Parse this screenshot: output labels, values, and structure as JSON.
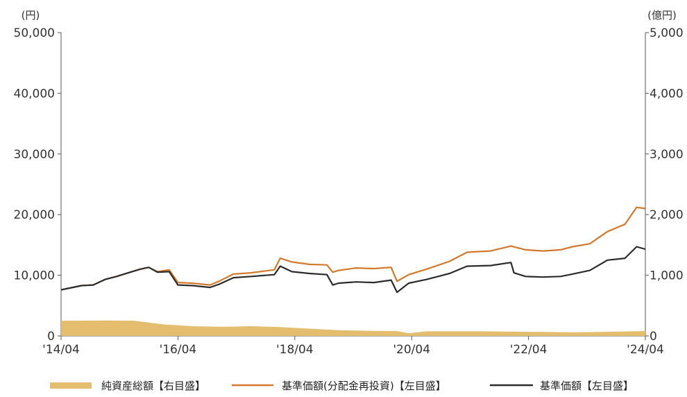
{
  "chart_data": {
    "type": "line",
    "left_unit": "(円)",
    "right_unit": "(億円)",
    "ylim_left": [
      0,
      50000
    ],
    "ylim_right": [
      0,
      5000
    ],
    "left_ticks": [
      "0",
      "10,000",
      "20,000",
      "30,000",
      "40,000",
      "50,000"
    ],
    "right_ticks": [
      "0",
      "1,000",
      "2,000",
      "3,000",
      "4,000",
      "5,000"
    ],
    "x_ticks": [
      "'14/04",
      "'16/04",
      "'18/04",
      "'20/04",
      "'22/04",
      "'24/04"
    ],
    "grid": false,
    "legend_position": "bottom",
    "series": [
      {
        "name": "純資産総額【右目盛】",
        "type": "area",
        "axis": "right",
        "color": "#E4BE6E",
        "x": [
          2014.25,
          2015.0,
          2015.5,
          2016.0,
          2016.5,
          2017.0,
          2017.5,
          2018.0,
          2018.5,
          2019.0,
          2019.5,
          2020.0,
          2020.2,
          2020.5,
          2021.0,
          2021.5,
          2022.0,
          2022.5,
          2023.0,
          2023.5,
          2024.0,
          2024.25
        ],
        "values": [
          250,
          255,
          250,
          190,
          160,
          150,
          160,
          145,
          120,
          95,
          85,
          80,
          45,
          75,
          75,
          75,
          70,
          65,
          60,
          65,
          75,
          80
        ]
      },
      {
        "name": "基準価額(分配金再投資)【左目盛】",
        "type": "line",
        "axis": "left",
        "color": "#D4782A",
        "x": [
          2014.25,
          2014.4,
          2014.6,
          2014.8,
          2015.0,
          2015.2,
          2015.4,
          2015.6,
          2015.75,
          2015.9,
          2016.1,
          2016.25,
          2016.5,
          2016.8,
          2016.95,
          2017.2,
          2017.5,
          2017.9,
          2018.0,
          2018.2,
          2018.5,
          2018.8,
          2018.9,
          2019.0,
          2019.3,
          2019.6,
          2019.9,
          2020.0,
          2020.2,
          2020.5,
          2020.9,
          2021.2,
          2021.6,
          2021.95,
          2022.2,
          2022.5,
          2022.8,
          2023.0,
          2023.3,
          2023.6,
          2023.9,
          2024.1,
          2024.25
        ],
        "values": [
          7600,
          7900,
          8300,
          8400,
          9300,
          9800,
          10400,
          11000,
          11300,
          10600,
          10900,
          8800,
          8700,
          8400,
          9000,
          10200,
          10400,
          10900,
          12800,
          12200,
          11800,
          11700,
          10500,
          10800,
          11200,
          11100,
          11300,
          9000,
          10100,
          11000,
          12300,
          13800,
          14000,
          14800,
          14200,
          14000,
          14200,
          14700,
          15200,
          17200,
          18400,
          21200,
          21000
        ]
      },
      {
        "name": "基準価額【左目盛】",
        "type": "line",
        "axis": "left",
        "color": "#2B2B2B",
        "x": [
          2014.25,
          2014.4,
          2014.6,
          2014.8,
          2015.0,
          2015.2,
          2015.4,
          2015.6,
          2015.75,
          2015.9,
          2016.1,
          2016.25,
          2016.5,
          2016.8,
          2016.95,
          2017.2,
          2017.5,
          2017.9,
          2018.0,
          2018.2,
          2018.5,
          2018.8,
          2018.9,
          2019.0,
          2019.3,
          2019.6,
          2019.9,
          2020.0,
          2020.2,
          2020.5,
          2020.9,
          2021.2,
          2021.6,
          2021.95,
          2022.0,
          2022.2,
          2022.5,
          2022.8,
          2023.0,
          2023.3,
          2023.6,
          2023.9,
          2024.1,
          2024.25
        ],
        "values": [
          7600,
          7900,
          8300,
          8400,
          9300,
          9800,
          10400,
          11000,
          11300,
          10500,
          10600,
          8400,
          8300,
          8000,
          8500,
          9600,
          9800,
          10100,
          11500,
          10600,
          10300,
          10100,
          8400,
          8700,
          8900,
          8800,
          9200,
          7200,
          8700,
          9300,
          10300,
          11500,
          11600,
          12100,
          10400,
          9800,
          9700,
          9800,
          10200,
          10800,
          12500,
          12800,
          14700,
          14300
        ]
      }
    ]
  }
}
